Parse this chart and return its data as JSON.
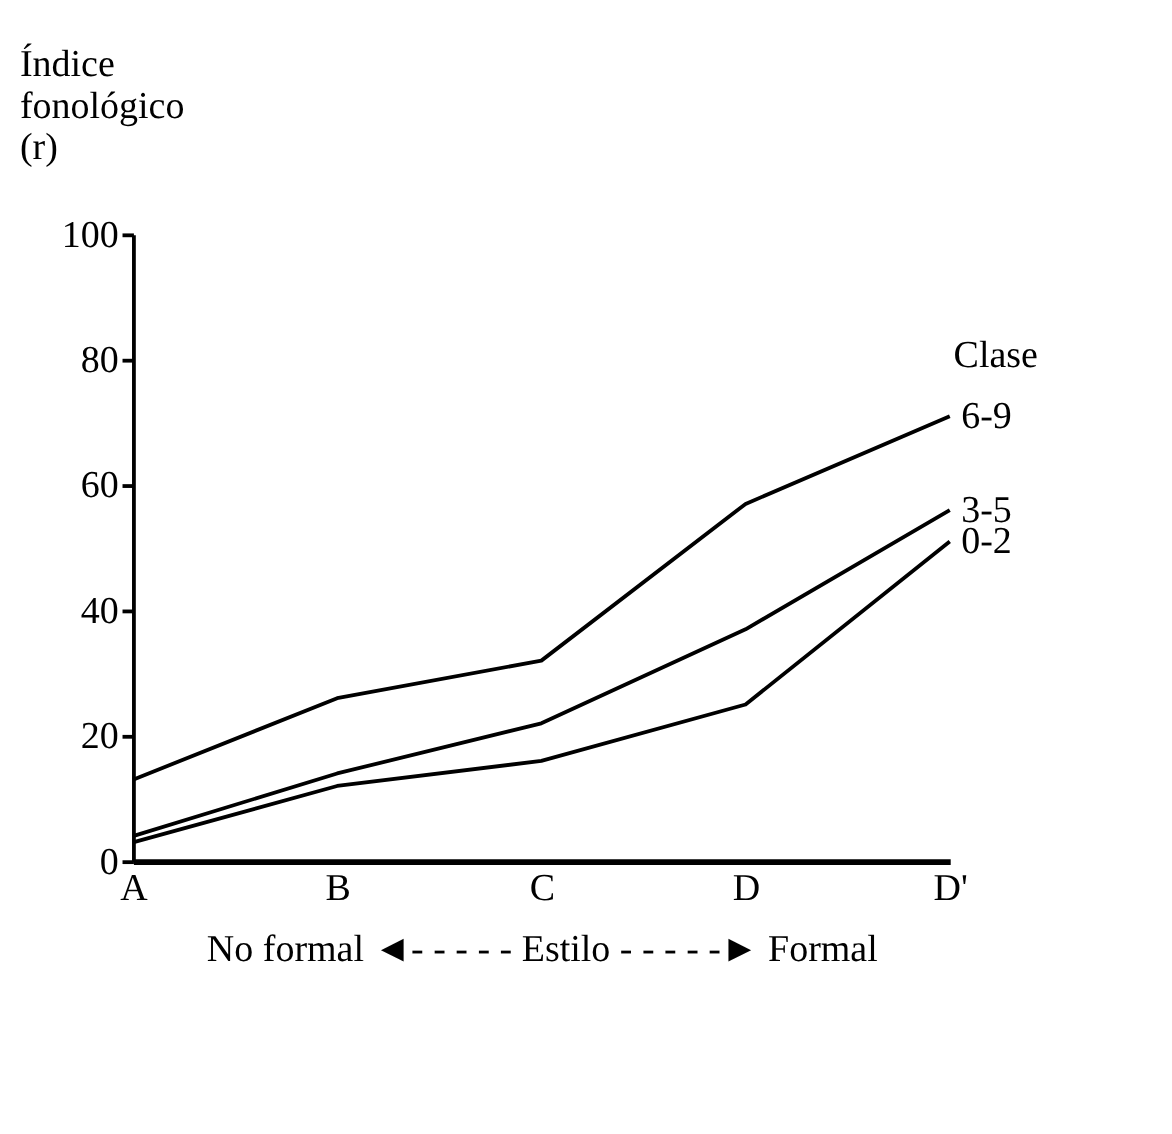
{
  "chart_data": {
    "type": "line",
    "ylabel": "Índice\nfonológico\n(r)",
    "xlabel": "No formal ◄- - - - - Estilo - - - - -► Formal",
    "legend_title": "Clase",
    "categories": [
      "A",
      "B",
      "C",
      "D",
      "D'"
    ],
    "series": [
      {
        "name": "6-9",
        "color": "#000000",
        "values": [
          13,
          26,
          32,
          57,
          71
        ]
      },
      {
        "name": "3-5",
        "color": "#000000",
        "values": [
          4,
          14,
          22,
          37,
          56
        ]
      },
      {
        "name": "0-2",
        "color": "#000000",
        "values": [
          3,
          12,
          16,
          25,
          51
        ]
      }
    ],
    "ylim": [
      0,
      100
    ],
    "yticks": [
      0,
      20,
      40,
      60,
      80,
      100
    ],
    "grid": false,
    "marker": "none",
    "line_style": "solid"
  }
}
